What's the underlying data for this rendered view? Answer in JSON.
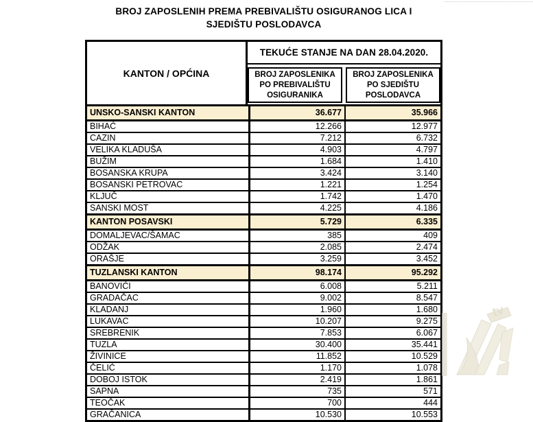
{
  "page": {
    "title_line1": "BROJ ZAPOSLENIH PREMA PREBIVALIŠTU OSIGURANOG LICA I",
    "title_line2": "SJEDIŠTU POSLODAVCA"
  },
  "table": {
    "corner_header": "KANTON / OPĆINA",
    "group_header": "TEKUĆE STANJE NA DAN 28.04.2020.",
    "sub_header_residence": "BROJ ZAPOSLENIKA PO PREBIVALIŠTU OSIGURANIKA",
    "sub_header_employer": "BROJ ZAPOSLENIKA PO SJEDIŠTU POSLODAVCA",
    "rows": [
      {
        "type": "kanton",
        "name": "UNSKO-SANSKI KANTON",
        "residence": "36.677",
        "employer": "35.966"
      },
      {
        "type": "opcina",
        "name": "BIHAĆ",
        "residence": "12.266",
        "employer": "12.977"
      },
      {
        "type": "opcina",
        "name": "CAZIN",
        "residence": "7.212",
        "employer": "6.732"
      },
      {
        "type": "opcina",
        "name": "VELIKA KLADUŠA",
        "residence": "4.903",
        "employer": "4.797"
      },
      {
        "type": "opcina",
        "name": "BUŽIM",
        "residence": "1.684",
        "employer": "1.410"
      },
      {
        "type": "opcina",
        "name": "BOSANSKA KRUPA",
        "residence": "3.424",
        "employer": "3.140"
      },
      {
        "type": "opcina",
        "name": "BOSANSKI PETROVAC",
        "residence": "1.221",
        "employer": "1.254"
      },
      {
        "type": "opcina",
        "name": "KLJUČ",
        "residence": "1.742",
        "employer": "1.470"
      },
      {
        "type": "opcina",
        "name": "SANSKI MOST",
        "residence": "4.225",
        "employer": "4.186"
      },
      {
        "type": "kanton",
        "name": "KANTON POSAVSKI",
        "residence": "5.729",
        "employer": "6.335"
      },
      {
        "type": "opcina",
        "name": "DOMALJEVAC/ŠAMAC",
        "residence": "385",
        "employer": "409"
      },
      {
        "type": "opcina",
        "name": "ODŽAK",
        "residence": "2.085",
        "employer": "2.474"
      },
      {
        "type": "opcina",
        "name": "ORAŠJE",
        "residence": "3.259",
        "employer": "3.452"
      },
      {
        "type": "kanton",
        "name": "TUZLANSKI KANTON",
        "residence": "98.174",
        "employer": "95.292"
      },
      {
        "type": "opcina",
        "name": "BANOVIĆI",
        "residence": "6.008",
        "employer": "5.211"
      },
      {
        "type": "opcina",
        "name": "GRADAČAC",
        "residence": "9.002",
        "employer": "8.547"
      },
      {
        "type": "opcina",
        "name": "KLADANJ",
        "residence": "1.960",
        "employer": "1.680"
      },
      {
        "type": "opcina",
        "name": "LUKAVAC",
        "residence": "10.207",
        "employer": "9.275"
      },
      {
        "type": "opcina",
        "name": "SREBRENIK",
        "residence": "7.853",
        "employer": "6.067"
      },
      {
        "type": "opcina",
        "name": "TUZLA",
        "residence": "30.400",
        "employer": "35.441"
      },
      {
        "type": "opcina",
        "name": "ŽIVINICE",
        "residence": "11.852",
        "employer": "10.529"
      },
      {
        "type": "opcina",
        "name": "ČELIĆ",
        "residence": "1.170",
        "employer": "1.078"
      },
      {
        "type": "opcina",
        "name": "DOBOJ ISTOK",
        "residence": "2.419",
        "employer": "1.861"
      },
      {
        "type": "opcina",
        "name": "SAPNA",
        "residence": "735",
        "employer": "571"
      },
      {
        "type": "opcina",
        "name": "TEOČAK",
        "residence": "700",
        "employer": "444"
      },
      {
        "type": "opcina",
        "name": "GRAČANICA",
        "residence": "10.530",
        "employer": "10.553"
      }
    ]
  },
  "watermark": {
    "label": "tv"
  },
  "colors": {
    "kanton_row_bg": "#FBEFD1",
    "table_border": "#000000",
    "watermark_fill": "#EFEBDD"
  }
}
